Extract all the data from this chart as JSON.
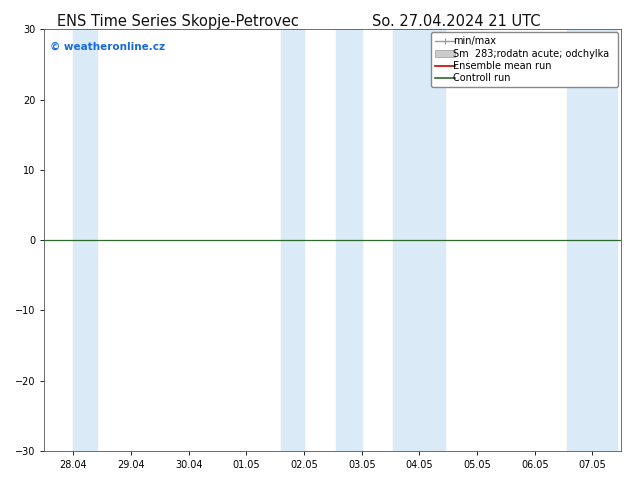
{
  "title_left": "ENS Time Series Skopje-Petrovec",
  "title_right": "So. 27.04.2024 21 UTC",
  "ylim": [
    -30,
    30
  ],
  "yticks": [
    -30,
    -20,
    -10,
    0,
    10,
    20,
    30
  ],
  "xtick_labels": [
    "28.04",
    "29.04",
    "30.04",
    "01.05",
    "02.05",
    "03.05",
    "04.05",
    "05.05",
    "06.05",
    "07.05"
  ],
  "shaded_bands_xranges": [
    [
      0.0,
      0.42
    ],
    [
      3.6,
      4.0
    ],
    [
      4.55,
      5.0
    ],
    [
      5.55,
      6.45
    ],
    [
      8.55,
      9.42
    ]
  ],
  "band_color": "#daeaf7",
  "background_color": "#ffffff",
  "watermark": "© weatheronline.cz",
  "watermark_color": "#1a6ad8",
  "legend_labels": [
    "min/max",
    "Sm  283;rodatn acute; odchylka",
    "Ensemble mean run",
    "Controll run"
  ],
  "zero_line_color": "#2d6a2d",
  "title_fontsize": 10.5,
  "tick_fontsize": 7,
  "legend_fontsize": 7
}
